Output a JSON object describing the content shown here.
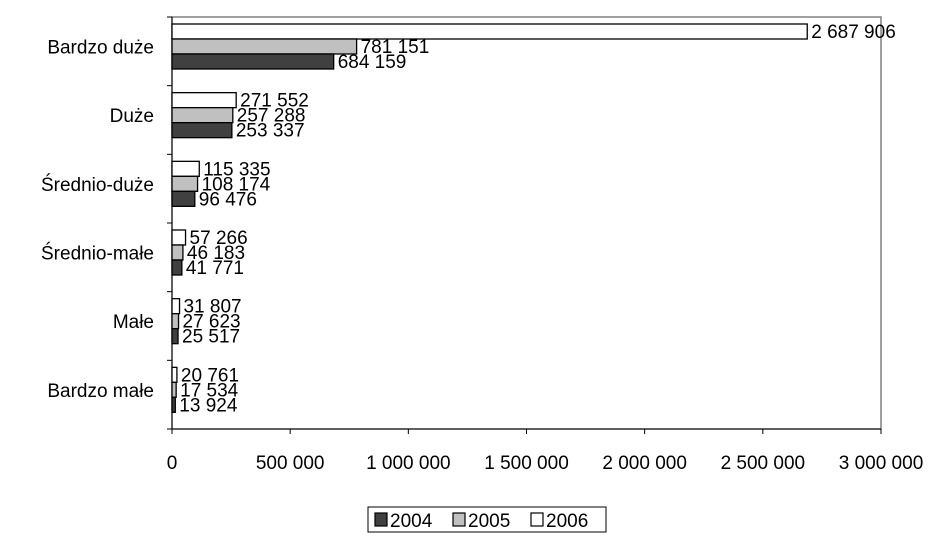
{
  "chart_data": {
    "type": "bar",
    "orientation": "horizontal",
    "categories": [
      "Bardzo duże",
      "Duże",
      "Średnio-duże",
      "Średnio-małe",
      "Małe",
      "Bardzo małe"
    ],
    "series": [
      {
        "name": "2004",
        "color": "#404040",
        "values": [
          684159,
          253337,
          96476,
          41771,
          25517,
          13924
        ],
        "labels": [
          "684 159",
          "253 337",
          "96 476",
          "41 771",
          "25 517",
          "13 924"
        ]
      },
      {
        "name": "2005",
        "color": "#c0c0c0",
        "values": [
          781151,
          257288,
          108174,
          46183,
          27623,
          17534
        ],
        "labels": [
          "781 151",
          "257 288",
          "108 174",
          "46 183",
          "27 623",
          "17 534"
        ]
      },
      {
        "name": "2006",
        "color": "#ffffff",
        "values": [
          2687906,
          271552,
          115335,
          57266,
          31807,
          20761
        ],
        "labels": [
          "2 687 906",
          "271 552",
          "115 335",
          "57 266",
          "31 807",
          "20 761"
        ]
      }
    ],
    "xlim": [
      0,
      3000000
    ],
    "xticks": [
      0,
      500000,
      1000000,
      1500000,
      2000000,
      2500000,
      3000000
    ],
    "xtick_labels": [
      "0",
      "500 000",
      "1 000 000",
      "1 500 000",
      "2 000 000",
      "2 500 000",
      "3 000 000"
    ],
    "title": "",
    "xlabel": "",
    "ylabel": "",
    "grid": false,
    "legend_position": "bottom",
    "plot_border_color": "#808080"
  }
}
